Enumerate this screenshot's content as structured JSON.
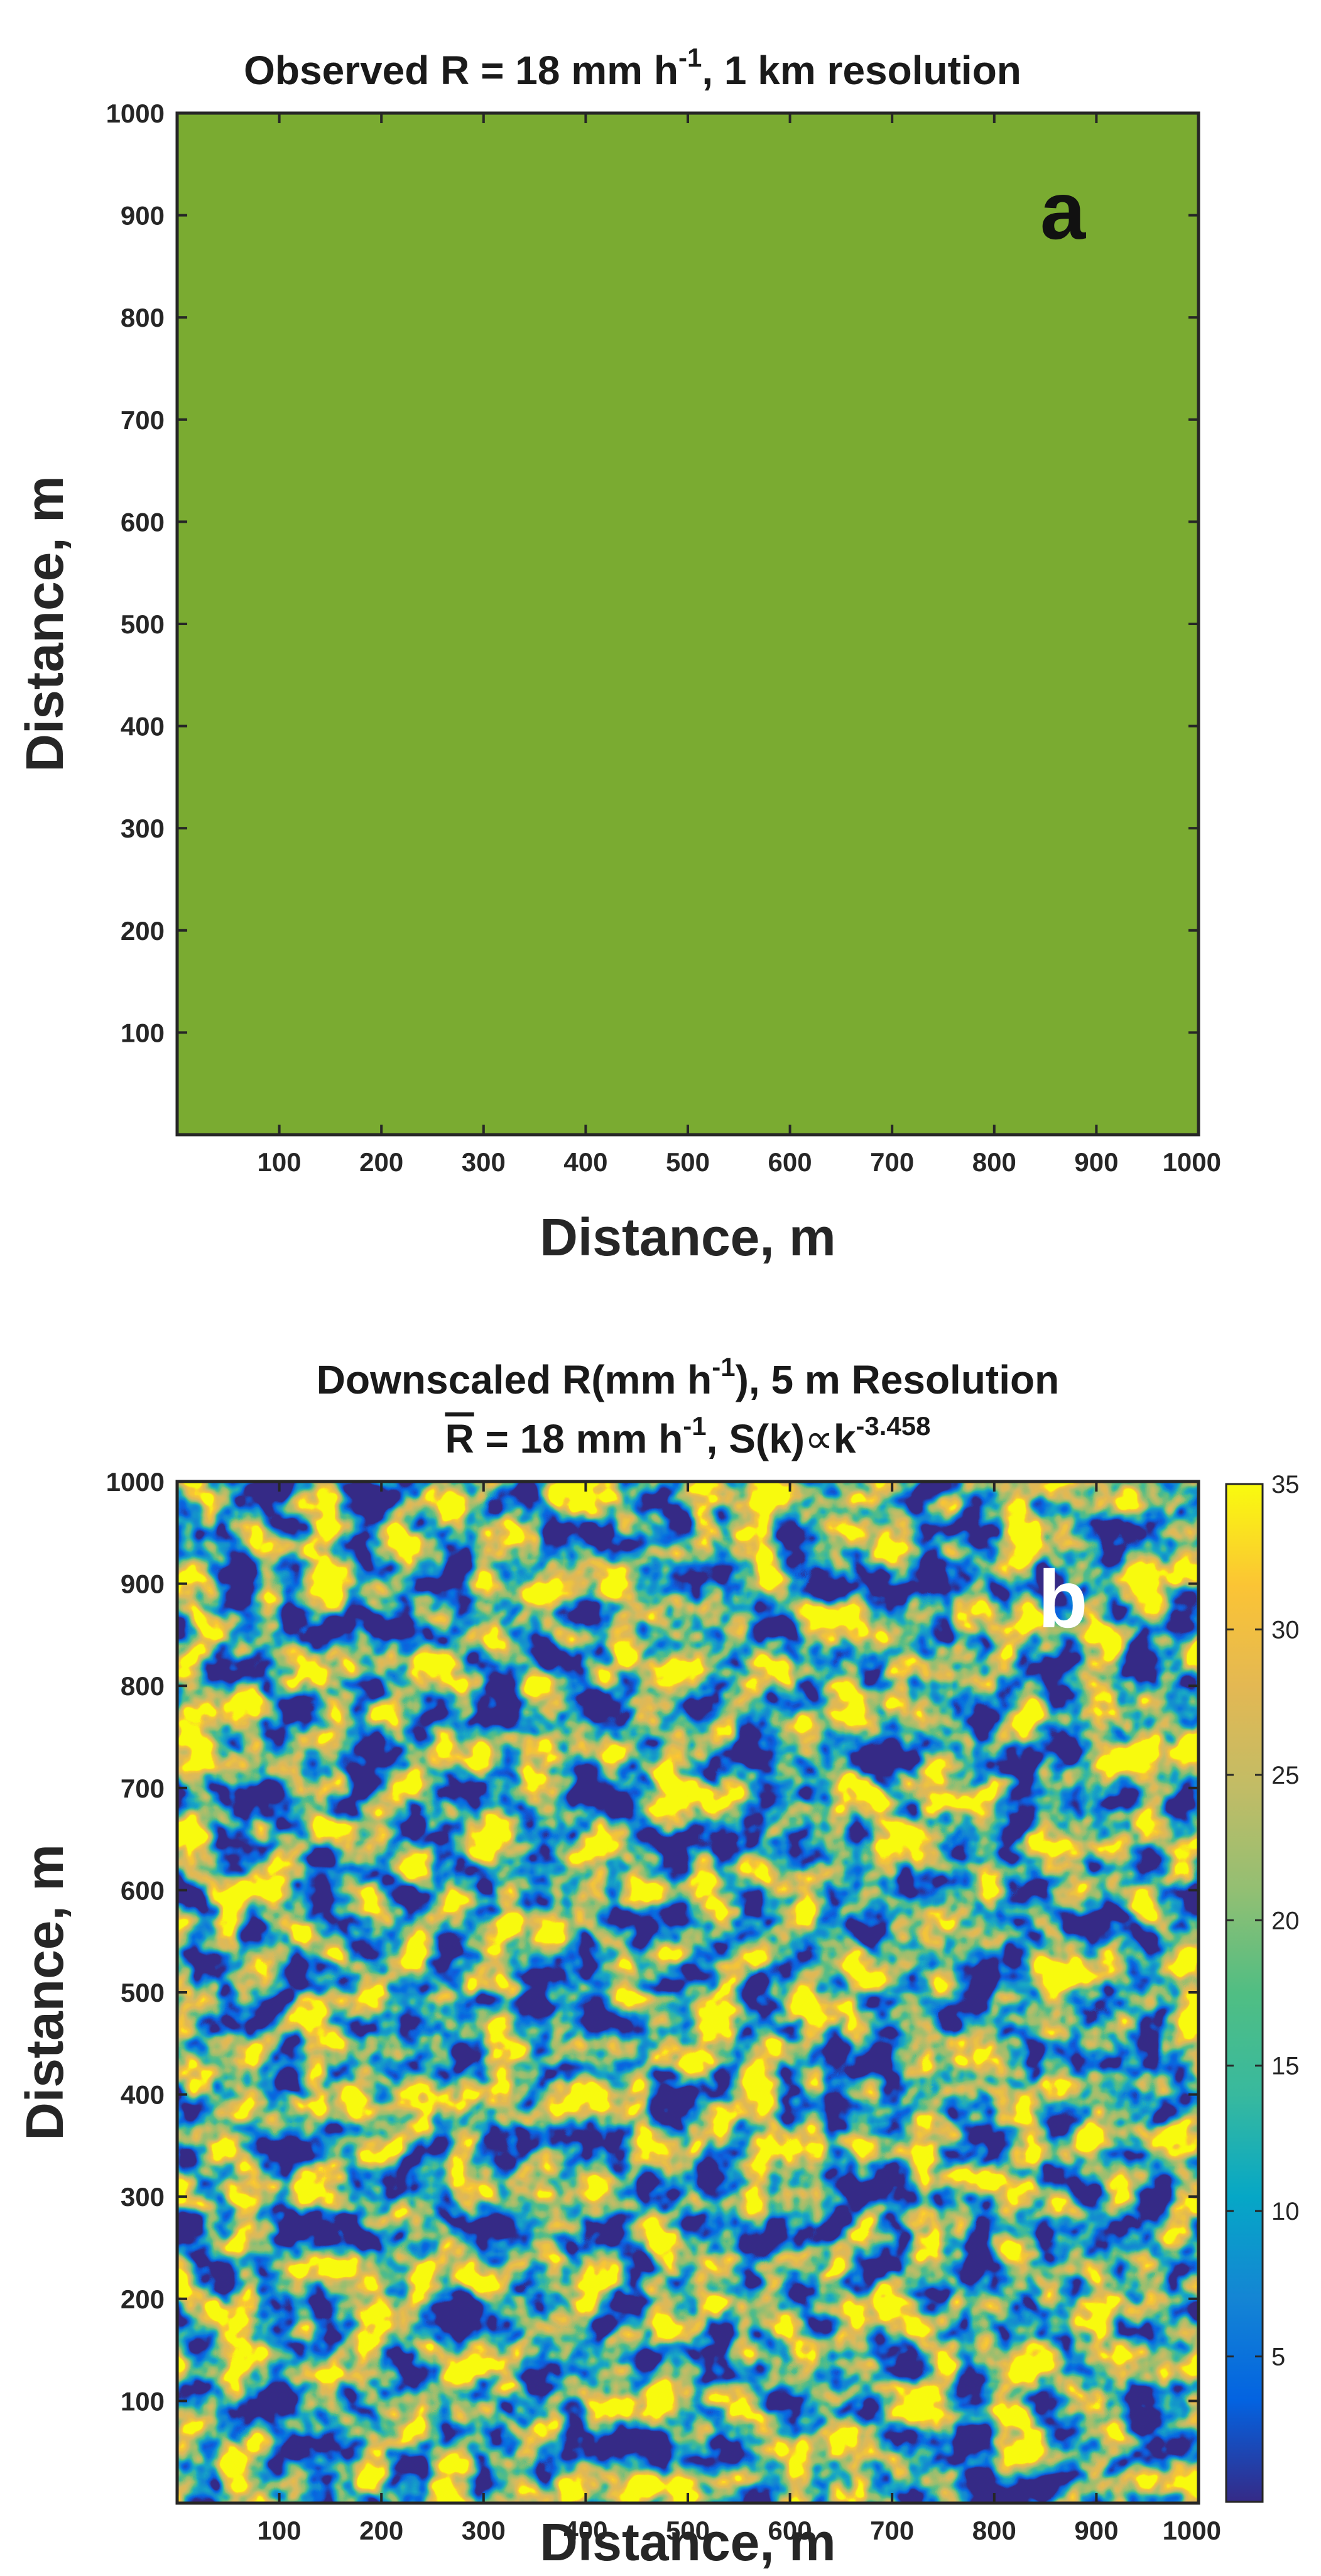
{
  "chart_data": [
    {
      "type": "heatmap",
      "title": {
        "before": "Observed R = 18 mm h",
        "sup": "-1",
        "after": ", 1 km resolution"
      },
      "panel_label": "a",
      "xlabel": "Distance, m",
      "ylabel": "Distance, m",
      "xlim": [
        0,
        1000
      ],
      "ylim": [
        0,
        1000
      ],
      "xticks": [
        100,
        200,
        300,
        400,
        500,
        600,
        700,
        800,
        900,
        1000
      ],
      "yticks": [
        100,
        200,
        300,
        400,
        500,
        600,
        700,
        800,
        900,
        1000
      ],
      "field": "uniform",
      "value": 18,
      "fill_color": "#7aab31"
    },
    {
      "type": "heatmap",
      "title": {
        "line1_before": "Downscaled R(mm h",
        "line1_sup": "-1",
        "line1_after": "), 5 m Resolution",
        "line2_r": "R",
        "line2_a": " = 18 mm h",
        "line2_sup1": "-1",
        "line2_b": ", S(k)",
        "line2_prop": "∝",
        "line2_c": "k",
        "line2_sup2": "-3.458"
      },
      "panel_label": "b",
      "xlabel": "Distance, m",
      "ylabel": "Distance, m",
      "xlim": [
        0,
        1000
      ],
      "ylim": [
        0,
        1000
      ],
      "xticks": [
        100,
        200,
        300,
        400,
        500,
        600,
        700,
        800,
        900,
        1000
      ],
      "yticks": [
        100,
        200,
        300,
        400,
        500,
        600,
        700,
        800,
        900,
        1000
      ],
      "resolution_m": 5,
      "mean": 18,
      "spectral_slope": -3.458,
      "colormap": "parula",
      "clim": [
        0,
        35
      ],
      "colorbar_ticks": [
        5,
        10,
        15,
        20,
        25,
        30,
        35
      ]
    }
  ]
}
